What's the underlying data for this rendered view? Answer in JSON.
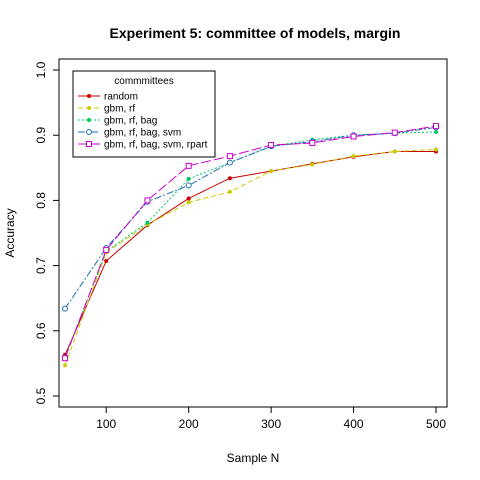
{
  "chart_data": {
    "type": "line",
    "title": "Experiment 5: committee of models, margin",
    "xlabel": "Sample N",
    "ylabel": "Accuracy",
    "xlim": [
      50,
      500
    ],
    "ylim": [
      0.5,
      1.0
    ],
    "xticks": [
      "100",
      "200",
      "300",
      "400",
      "500"
    ],
    "yticks": [
      "0.5",
      "0.6",
      "0.7",
      "0.8",
      "0.9",
      "1.0"
    ],
    "x": [
      50,
      100,
      150,
      200,
      250,
      300,
      350,
      400,
      450,
      500
    ],
    "legend": {
      "title": "commmittees",
      "position": "top-left"
    },
    "grid": false,
    "series": [
      {
        "name": "random",
        "color": "#cc0000",
        "dash": "",
        "marker": "dot",
        "values": [
          0.563,
          0.707,
          0.762,
          0.803,
          0.834,
          0.845,
          0.856,
          0.867,
          0.875,
          0.875
        ]
      },
      {
        "name": "gbm, rf",
        "color": "#cccc00",
        "dash": "5,3",
        "marker": "dot",
        "values": [
          0.547,
          0.72,
          0.763,
          0.797,
          0.813,
          0.845,
          0.855,
          0.868,
          0.875,
          0.878
        ]
      },
      {
        "name": "gbm, rf, bag",
        "color": "#00cc66",
        "dash": "2,2",
        "marker": "dot",
        "values": [
          0.56,
          0.722,
          0.766,
          0.833,
          0.858,
          0.883,
          0.893,
          0.9,
          0.903,
          0.905
        ]
      },
      {
        "name": "gbm, rf, bag, svm",
        "color": "#1f6fb4",
        "dash": "7,2,2,2",
        "marker": "circle",
        "values": [
          0.634,
          0.727,
          0.798,
          0.823,
          0.858,
          0.883,
          0.89,
          0.9,
          0.903,
          0.912
        ]
      },
      {
        "name": "gbm, rf, bag, svm, rpart",
        "color": "#cc00cc",
        "dash": "10,3",
        "marker": "square",
        "values": [
          0.558,
          0.724,
          0.8,
          0.853,
          0.868,
          0.885,
          0.888,
          0.898,
          0.904,
          0.914
        ]
      }
    ]
  }
}
